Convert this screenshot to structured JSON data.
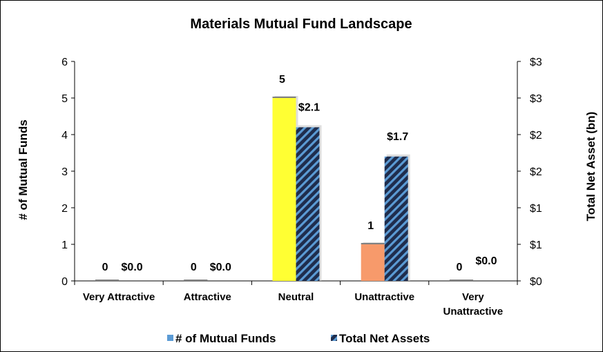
{
  "chart_data": {
    "type": "bar",
    "title": "Materials Mutual Fund Landscape",
    "categories": [
      [
        "Very Attractive"
      ],
      [
        "Attractive"
      ],
      [
        "Neutral"
      ],
      [
        "Unattractive"
      ],
      [
        "Very",
        "Unattractive"
      ]
    ],
    "ylabel": "# of Mutual Funds",
    "y2label": "Total Net Asset (bn)",
    "ylim": [
      0,
      6
    ],
    "y2lim": [
      0,
      3
    ],
    "yticks": [
      "0",
      "1",
      "2",
      "3",
      "4",
      "5",
      "6"
    ],
    "y2ticks": [
      "$0",
      "$1",
      "$1",
      "$2",
      "$2",
      "$3",
      "$3"
    ],
    "series": [
      {
        "name": "# of Mutual Funds",
        "axis": "left",
        "values": [
          0,
          0,
          5,
          1,
          0
        ],
        "labels": [
          "0",
          "0",
          "5",
          "1",
          "0"
        ],
        "colors": [
          "#7f7f7f",
          "#7f7f7f",
          "#ffff33",
          "#f79a6b",
          "#7f7f7f"
        ],
        "legend_color": "#5b9bd5"
      },
      {
        "name": "Total Net Assets",
        "axis": "right",
        "values": [
          0,
          0,
          2.1,
          1.7,
          0
        ],
        "labels": [
          "$0.0",
          "$0.0",
          "$2.1",
          "$1.7",
          "$0.0"
        ],
        "color": "#1f2d4d",
        "stripe_color": "#5b9bd5"
      }
    ],
    "legend_position": "bottom",
    "grid": false
  }
}
